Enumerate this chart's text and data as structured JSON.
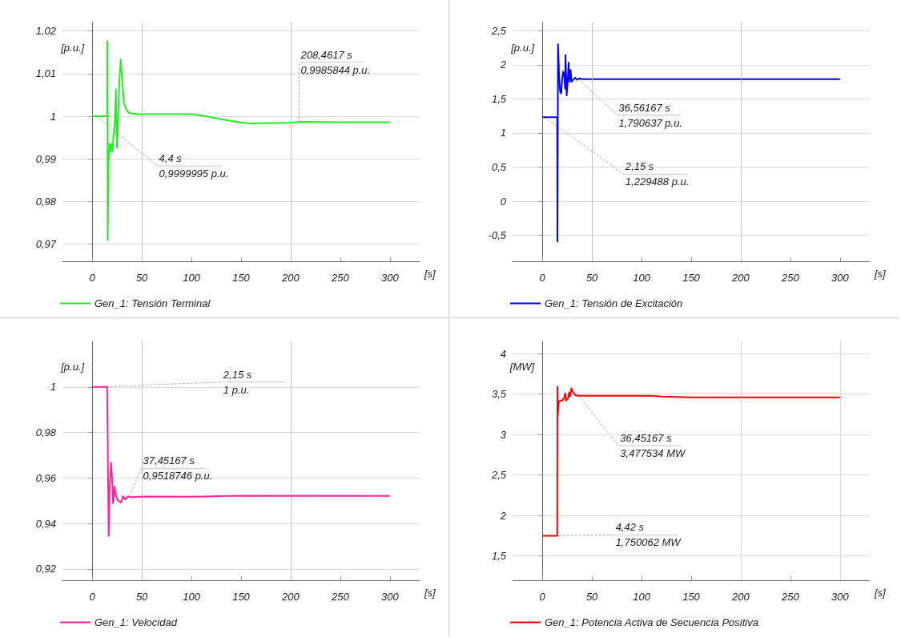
{
  "chart_data": [
    {
      "type": "line",
      "xlabel": "[s]",
      "ylabel": "[p.u.]",
      "xlim": [
        -30,
        330
      ],
      "xticks": [
        0,
        50,
        100,
        150,
        200,
        250,
        300
      ],
      "ylim": [
        0.966,
        1.022
      ],
      "yticks": [
        {
          "value": 0.97,
          "label": "0,97"
        },
        {
          "value": 0.98,
          "label": "0,98"
        },
        {
          "value": 0.99,
          "label": "0,99"
        },
        {
          "value": 1,
          "label": "1"
        },
        {
          "value": 1.01,
          "label": "1,01"
        },
        {
          "value": 1.02,
          "label": "1,02"
        }
      ],
      "grid": "y",
      "legend": "bottom left",
      "ref_lines": [
        {
          "axis": "x",
          "value": 50,
          "color": "#c0c0c0"
        },
        {
          "axis": "x",
          "value": 200,
          "color": "#c0c0c0"
        }
      ],
      "series": [
        {
          "name": "Gen_1: Tensión Terminal",
          "color": "#22ee22",
          "x": [
            0,
            15,
            15.2,
            15.6,
            16.5,
            17.5,
            18.5,
            19.5,
            20.5,
            21.5,
            22.5,
            23.8,
            24.9,
            26,
            27,
            28.7,
            30,
            32,
            35,
            38,
            45,
            100,
            110,
            130,
            150,
            160,
            180,
            190,
            200,
            210,
            250,
            300
          ],
          "values": [
            1,
            1,
            1.0176,
            0.971,
            0.99,
            0.9935,
            0.9918,
            0.9935,
            0.9918,
            0.996,
            0.997,
            1.0063,
            0.9926,
            0.998,
            1.007,
            1.0133,
            1.009,
            1.003,
            1.0012,
            1.0007,
            1.0005,
            1.0005,
            1.0002,
            0.9993,
            0.9985,
            0.9983,
            0.9984,
            0.9984,
            0.9985,
            0.9987,
            0.9986,
            0.9986
          ]
        }
      ],
      "annotations": [
        {
          "text": "4,4 s\n0,9999995 p.u.",
          "x": 4.4,
          "y": 0.9999995
        },
        {
          "text": "208,4617 s\n0,9985844 p.u.",
          "x": 208.4617,
          "y": 0.9985844
        }
      ]
    },
    {
      "type": "line",
      "xlabel": "[s]",
      "ylabel": "[p.u.]",
      "xlim": [
        -30,
        330
      ],
      "xticks": [
        0,
        50,
        100,
        150,
        200,
        250,
        300
      ],
      "ylim": [
        -0.88,
        2.62
      ],
      "yticks": [
        {
          "value": -0.5,
          "label": "-0,5"
        },
        {
          "value": 0,
          "label": "0"
        },
        {
          "value": 0.5,
          "label": "0,5"
        },
        {
          "value": 1,
          "label": "1"
        },
        {
          "value": 1.5,
          "label": "1,5"
        },
        {
          "value": 2,
          "label": "2"
        },
        {
          "value": 2.5,
          "label": "2,5"
        }
      ],
      "grid": "y",
      "legend": "bottom left",
      "ref_lines": [
        {
          "axis": "x",
          "value": 50,
          "color": "#c0c0c0"
        },
        {
          "axis": "x",
          "value": 200,
          "color": "#c0c0c0"
        }
      ],
      "series": [
        {
          "name": "Gen_1: Tensión de Excitación",
          "color": "#0000ff",
          "x": [
            0,
            15,
            15.2,
            15.8,
            17,
            18,
            19,
            20,
            21,
            22,
            23,
            23.3,
            24.5,
            25.5,
            26.5,
            27.5,
            28.5,
            29.5,
            31,
            33,
            35,
            37,
            40,
            100,
            300
          ],
          "values": [
            1.23,
            1.23,
            -0.59,
            2.3,
            1.8,
            1.6,
            1.58,
            1.8,
            1.9,
            1.85,
            1.65,
            2.14,
            1.55,
            1.75,
            2.03,
            1.75,
            1.92,
            1.75,
            1.78,
            1.81,
            1.78,
            1.8,
            1.79,
            1.79,
            1.79
          ]
        }
      ],
      "annotations": [
        {
          "text": "36,56167 s\n1,790637 p.u.",
          "x": 36.56167,
          "y": 1.790637
        },
        {
          "text": "2,15 s\n1,229488 p.u.",
          "x": 2.15,
          "y": 1.229488
        }
      ]
    },
    {
      "type": "line",
      "xlabel": "[s]",
      "ylabel": "[p.u.]",
      "xlim": [
        -30,
        330
      ],
      "xticks": [
        0,
        50,
        100,
        150,
        200,
        250,
        300
      ],
      "ylim": [
        0.915,
        1.02
      ],
      "yticks": [
        {
          "value": 0.92,
          "label": "0,92"
        },
        {
          "value": 0.94,
          "label": "0,94"
        },
        {
          "value": 0.96,
          "label": "0,96"
        },
        {
          "value": 0.98,
          "label": "0,98"
        },
        {
          "value": 1,
          "label": "1"
        }
      ],
      "grid": "y",
      "legend": "bottom left",
      "ref_lines": [
        {
          "axis": "x",
          "value": 50,
          "color": "#c0c0c0"
        },
        {
          "axis": "x",
          "value": 200,
          "color": "#c0c0c0"
        }
      ],
      "series": [
        {
          "name": "Gen_1: Velocidad",
          "color": "#ff2299",
          "x": [
            0,
            15,
            16.6,
            17.5,
            19,
            20,
            21,
            22.5,
            24,
            26,
            29,
            31,
            33,
            36,
            40,
            50,
            100,
            130,
            150,
            300
          ],
          "values": [
            1,
            1,
            0.9345,
            0.955,
            0.9667,
            0.96,
            0.9488,
            0.9563,
            0.952,
            0.95,
            0.9491,
            0.952,
            0.9505,
            0.9518,
            0.9515,
            0.9518,
            0.9517,
            0.952,
            0.9522,
            0.9521
          ]
        }
      ],
      "annotations": [
        {
          "text": "2,15 s\n1 p.u.",
          "x": 2.15,
          "y": 1
        },
        {
          "text": "37,45167 s\n0,9518746 p.u.",
          "x": 37.45167,
          "y": 0.9518746
        }
      ]
    },
    {
      "type": "line",
      "xlabel": "[s]",
      "ylabel": "[MW]",
      "xlim": [
        -30,
        330
      ],
      "xticks": [
        0,
        50,
        100,
        150,
        200,
        250,
        300
      ],
      "ylim": [
        1.2,
        4.15
      ],
      "yticks": [
        {
          "value": 1.5,
          "label": "1,5"
        },
        {
          "value": 2,
          "label": "2"
        },
        {
          "value": 2.5,
          "label": "2,5"
        },
        {
          "value": 3,
          "label": "3"
        },
        {
          "value": 3.5,
          "label": "3,5"
        },
        {
          "value": 4,
          "label": "4"
        }
      ],
      "grid": "y",
      "legend": "bottom left",
      "ref_lines": [
        {
          "axis": "x",
          "value": 200,
          "color": "#d8d8d8"
        },
        {
          "axis": "x",
          "value": 300,
          "color": "#d8d8d8"
        }
      ],
      "series": [
        {
          "name": "Gen_1: Potencia Activa de Secuencia Positiva",
          "color": "#ff0000",
          "x": [
            0,
            15,
            15.2,
            15.6,
            16.5,
            18,
            20,
            22,
            23,
            24,
            26,
            27,
            28,
            29.2,
            31,
            33,
            36,
            50,
            110,
            120,
            150,
            170,
            200,
            300
          ],
          "values": [
            1.75,
            1.75,
            3.59,
            3.25,
            3.4,
            3.42,
            3.42,
            3.45,
            3.51,
            3.42,
            3.45,
            3.52,
            3.47,
            3.57,
            3.52,
            3.49,
            3.48,
            3.48,
            3.48,
            3.47,
            3.46,
            3.46,
            3.46,
            3.46
          ]
        }
      ],
      "annotations": [
        {
          "text": "36,45167 s\n3,477534 MW",
          "x": 36.45167,
          "y": 3.477534
        },
        {
          "text": "4,42 s\n1,750062 MW",
          "x": 4.42,
          "y": 1.750062
        }
      ]
    }
  ]
}
